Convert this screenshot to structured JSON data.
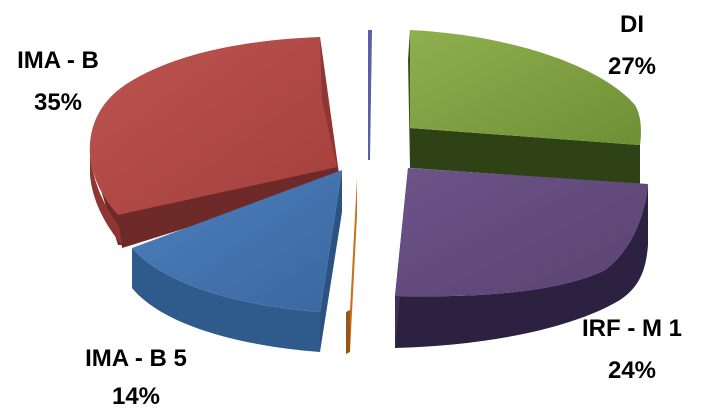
{
  "chart_data": {
    "type": "pie",
    "style": "3d-exploded",
    "title": "",
    "slices": [
      {
        "label": "DI",
        "value_label": "27%",
        "value": 27,
        "color": "#7a9a3e"
      },
      {
        "label": "IRF - M 1",
        "value_label": "24%",
        "value": 24,
        "color": "#654b7e"
      },
      {
        "label": "",
        "value_label": "",
        "value": 0.4,
        "color": "#c9701e"
      },
      {
        "label": "IMA - B 5",
        "value_label": "14%",
        "value": 14,
        "color": "#4373ad"
      },
      {
        "label": "IMA - B",
        "value_label": "35%",
        "value": 35,
        "color": "#b14843"
      },
      {
        "label": "",
        "value_label": "",
        "value": 0.2,
        "color": "#5b5fa6"
      }
    ]
  }
}
